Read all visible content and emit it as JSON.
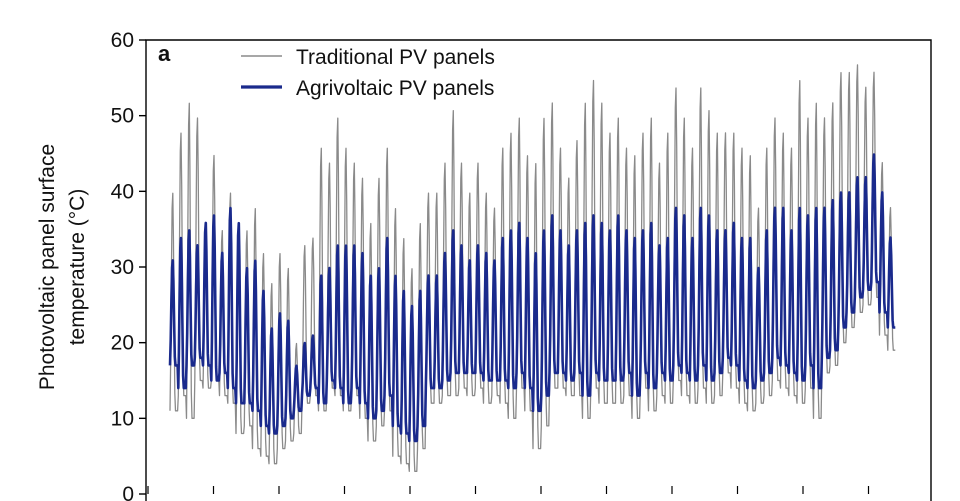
{
  "chart_data": {
    "type": "line",
    "panel_label": "a",
    "ylabel": [
      "Photovoltaic panel surface",
      "temperature (°C)"
    ],
    "ylim": [
      0,
      60
    ],
    "yticks": [
      0,
      10,
      20,
      30,
      40,
      50,
      60
    ],
    "xlabel": "",
    "x_unit": "day index (hourly samples, ~24 per day)",
    "grid": false,
    "legend": {
      "position": "top-left",
      "entries": [
        {
          "label": "Traditional PV panels",
          "series": 0
        },
        {
          "label": "Agrivoltaic  PV panels",
          "series": 1
        }
      ]
    },
    "series": [
      {
        "name": "Traditional PV panels",
        "color": "#8a8a8a",
        "daily_max": [
          40,
          48,
          52,
          50,
          36,
          45,
          35,
          40,
          35,
          35,
          38,
          32,
          28,
          32,
          30,
          20,
          33,
          34,
          46,
          44,
          50,
          46,
          44,
          42,
          36,
          42,
          46,
          38,
          34,
          30,
          36,
          40,
          40,
          44,
          51,
          44,
          40,
          44,
          40,
          38,
          46,
          48,
          50,
          45,
          44,
          50,
          52,
          46,
          42,
          47,
          52,
          55,
          52,
          48,
          50,
          46,
          45,
          48,
          50,
          44,
          48,
          54,
          50,
          46,
          54,
          51,
          48,
          48,
          48,
          46,
          45,
          38,
          46,
          50,
          48,
          46,
          55,
          50,
          52,
          50,
          52,
          56,
          56,
          57,
          54,
          56,
          44,
          38
        ],
        "daily_min": [
          11,
          13,
          10,
          15,
          14,
          15,
          13,
          12,
          8,
          9,
          6,
          5,
          4,
          6,
          7,
          8,
          12,
          13,
          11,
          14,
          13,
          11,
          13,
          10,
          7,
          9,
          11,
          5,
          4,
          3,
          6,
          12,
          12,
          13,
          13,
          14,
          13,
          14,
          12,
          13,
          12,
          10,
          14,
          11,
          6,
          9,
          14,
          14,
          13,
          13,
          10,
          14,
          12,
          12,
          12,
          13,
          10,
          14,
          11,
          13,
          12,
          15,
          13,
          12,
          14,
          12,
          13,
          16,
          14,
          12,
          11,
          12,
          13,
          15,
          14,
          13,
          12,
          14,
          10,
          16,
          17,
          20,
          22,
          24,
          25,
          26,
          21,
          19
        ]
      },
      {
        "name": "Agrivoltaic  PV panels",
        "color": "#1a2a8c",
        "daily_max": [
          31,
          34,
          35,
          33,
          36,
          37,
          32,
          38,
          36,
          30,
          31,
          27,
          22,
          24,
          23,
          17,
          20,
          21,
          29,
          30,
          33,
          33,
          33,
          32,
          29,
          30,
          34,
          29,
          27,
          25,
          27,
          29,
          29,
          32,
          35,
          33,
          31,
          33,
          32,
          31,
          34,
          35,
          36,
          34,
          32,
          35,
          37,
          35,
          33,
          35,
          36,
          37,
          36,
          35,
          37,
          35,
          34,
          35,
          36,
          33,
          34,
          38,
          37,
          34,
          38,
          37,
          35,
          35,
          36,
          34,
          34,
          30,
          35,
          38,
          38,
          35,
          38,
          37,
          38,
          38,
          39,
          40,
          40,
          42,
          42,
          45,
          40,
          34
        ],
        "daily_min": [
          17,
          14,
          17,
          18,
          17,
          15,
          16,
          14,
          12,
          12,
          11,
          9,
          8,
          9,
          10,
          11,
          13,
          14,
          12,
          15,
          14,
          12,
          14,
          12,
          10,
          11,
          13,
          9,
          8,
          7,
          9,
          14,
          14,
          15,
          16,
          16,
          16,
          16,
          15,
          15,
          15,
          14,
          16,
          14,
          11,
          13,
          16,
          16,
          15,
          16,
          13,
          16,
          15,
          15,
          15,
          16,
          13,
          16,
          14,
          16,
          15,
          17,
          16,
          15,
          17,
          15,
          16,
          18,
          17,
          15,
          14,
          15,
          16,
          18,
          17,
          16,
          15,
          17,
          14,
          18,
          19,
          22,
          24,
          26,
          27,
          28,
          24,
          22
        ]
      }
    ]
  }
}
